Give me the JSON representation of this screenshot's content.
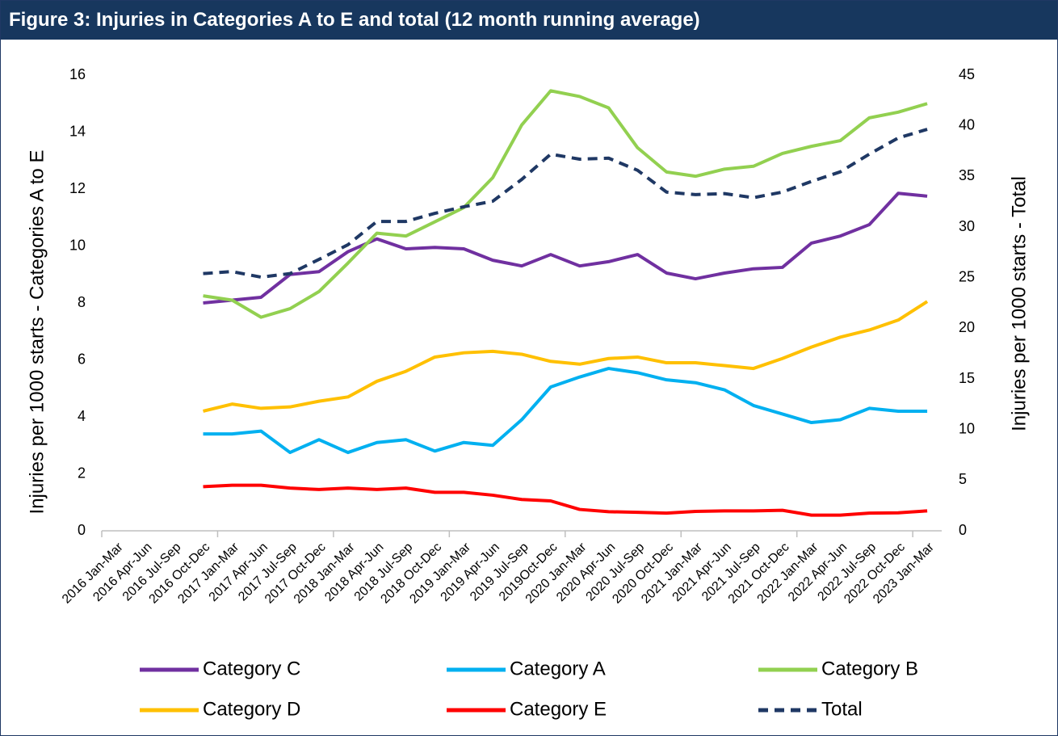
{
  "chart_data": {
    "type": "line",
    "title": "Figure 3: Injuries in Categories A to E and total (12 month running average)",
    "y_label": "Injuries per 1000 starts - Categories A to E",
    "y2_label": "Injuries per 1000 starts - Total",
    "categories": [
      "2016 Jan-Mar",
      "2016 Apr-Jun",
      "2016 Jul-Sep",
      "2016 Oct-Dec",
      "2017 Jan-Mar",
      "2017 Apr-Jun",
      "2017 Jul-Sep",
      "2017 Oct-Dec",
      "2018 Jan-Mar",
      "2018 Apr-Jun",
      "2018 Jul-Sep",
      "2018 Oct-Dec",
      "2019 Jan-Mar",
      "2019 Apr-Jun",
      "2019 Jul-Sep",
      "2019Oct-Dec",
      "2020 Jan-Mar",
      "2020 Apr-Jun",
      "2020 Jul-Sep",
      "2020 Oct-Dec",
      "2021 Jan-Mar",
      "2021 Apr-Jun",
      "2021 Jul-Sep",
      "2021 Oct-Dec",
      "2022 Jan-Mar",
      "2022 Apr-Jun",
      "2022 Jul-Sep",
      "2022 Oct-Dec",
      "2023 Jan-Mar"
    ],
    "series": [
      {
        "name": "Category C",
        "color": "#7030a0",
        "values": [
          null,
          null,
          null,
          8.0,
          8.1,
          8.2,
          9.0,
          9.1,
          9.8,
          10.25,
          9.9,
          9.95,
          9.9,
          9.5,
          9.3,
          9.7,
          9.3,
          9.45,
          9.7,
          9.05,
          8.85,
          9.05,
          9.2,
          9.25,
          10.1,
          10.35,
          10.75,
          11.85,
          11.75
        ]
      },
      {
        "name": "Category A",
        "color": "#00b0f0",
        "values": [
          null,
          null,
          null,
          3.4,
          3.4,
          3.5,
          2.75,
          3.2,
          2.75,
          3.1,
          3.2,
          2.8,
          3.1,
          3.0,
          3.9,
          5.05,
          5.4,
          5.7,
          5.55,
          5.3,
          5.2,
          4.95,
          4.4,
          4.1,
          3.8,
          3.9,
          4.3,
          4.2,
          4.2
        ]
      },
      {
        "name": "Category B",
        "color": "#92d050",
        "values": [
          null,
          null,
          null,
          8.25,
          8.1,
          7.5,
          7.8,
          8.4,
          9.4,
          10.45,
          10.35,
          10.85,
          11.35,
          12.4,
          14.25,
          15.45,
          15.25,
          14.85,
          13.45,
          12.6,
          12.45,
          12.7,
          12.8,
          13.25,
          13.5,
          13.7,
          14.5,
          14.7,
          15.0
        ]
      },
      {
        "name": "Category D",
        "color": "#ffc000",
        "values": [
          null,
          null,
          null,
          4.2,
          4.45,
          4.3,
          4.35,
          4.55,
          4.7,
          5.25,
          5.6,
          6.1,
          6.25,
          6.3,
          6.2,
          5.95,
          5.85,
          6.05,
          6.1,
          5.9,
          5.9,
          5.8,
          5.7,
          6.05,
          6.45,
          6.8,
          7.05,
          7.4,
          8.05
        ]
      },
      {
        "name": "Category E",
        "color": "#ff0000",
        "values": [
          null,
          null,
          null,
          1.55,
          1.6,
          1.6,
          1.5,
          1.45,
          1.5,
          1.45,
          1.5,
          1.35,
          1.35,
          1.25,
          1.1,
          1.05,
          0.75,
          0.67,
          0.65,
          0.62,
          0.68,
          0.7,
          0.7,
          0.72,
          0.55,
          0.55,
          0.62,
          0.63,
          0.7
        ]
      },
      {
        "name": "Total",
        "color": "#1f3864",
        "dashed": true,
        "axis": "y2",
        "values": [
          null,
          null,
          null,
          25.4,
          25.6,
          25.05,
          25.4,
          26.8,
          28.25,
          30.55,
          30.55,
          31.35,
          32.0,
          32.55,
          34.7,
          37.2,
          36.7,
          36.8,
          35.6,
          33.45,
          33.2,
          33.3,
          32.9,
          33.45,
          34.5,
          35.45,
          37.2,
          38.8,
          39.65
        ]
      }
    ],
    "ylim": [
      0,
      16
    ],
    "yticks": [
      0,
      2,
      4,
      6,
      8,
      10,
      12,
      14,
      16
    ],
    "y2lim": [
      0,
      45
    ],
    "y2ticks": [
      0,
      5,
      10,
      15,
      20,
      25,
      30,
      35,
      40,
      45
    ]
  }
}
